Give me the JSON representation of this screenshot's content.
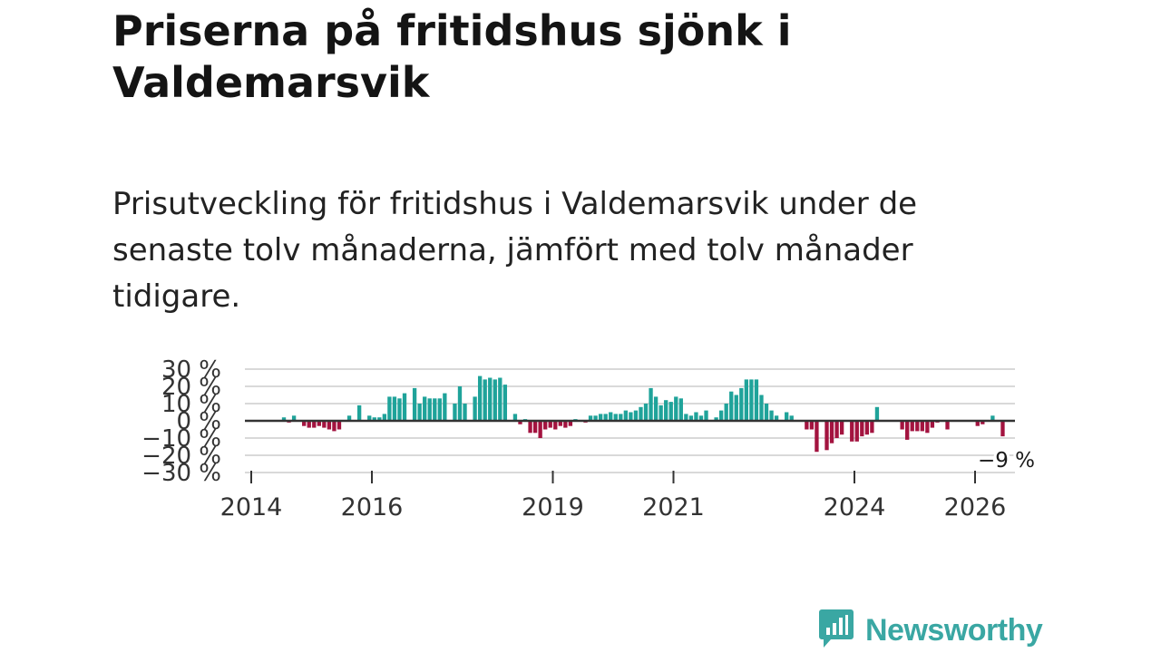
{
  "title": "Priserna på fritidshus sjönk i Valdemarsvik",
  "subtitle": "Prisutveckling för fritidshus i Valdemarsvik under de senaste tolv månaderna, jämfört med tolv månader tidigare.",
  "brand": {
    "name": "Newsworthy",
    "icon": "newsworthy-logo-icon"
  },
  "colors": {
    "positive": "#1fa39a",
    "negative": "#a3133f",
    "grid": "#d9d9d9",
    "zero_line": "#333333",
    "brand": "#3aa7a3"
  },
  "chart_data": {
    "type": "bar",
    "x_start": "2014-07",
    "x_step": "month",
    "x_ticks": [
      "2014",
      "2016",
      "2019",
      "2021",
      "2024",
      "2026"
    ],
    "y_ticks": [
      "30 %",
      "20 %",
      "10 %",
      "0 %",
      "−10 %",
      "−20 %",
      "−30 %"
    ],
    "ylim": [
      -30,
      30
    ],
    "grid": true,
    "annotation": "−9 %",
    "values": [
      2,
      -1,
      3,
      0,
      -3,
      -4,
      -4,
      -3,
      -4,
      -5,
      -6,
      -5,
      0,
      3,
      0,
      9,
      0,
      3,
      2,
      2,
      4,
      14,
      14,
      13,
      16,
      0,
      19,
      10,
      14,
      13,
      13,
      13,
      16,
      0,
      10,
      20,
      10,
      0,
      14,
      26,
      24,
      25,
      24,
      25,
      21,
      0,
      4,
      -2,
      1,
      -7,
      -7,
      -10,
      -5,
      -4,
      -5,
      -3,
      -4,
      -3,
      1,
      0,
      -1,
      3,
      3,
      4,
      4,
      5,
      4,
      4,
      6,
      5,
      6,
      8,
      10,
      19,
      14,
      9,
      12,
      11,
      14,
      13,
      4,
      3,
      5,
      3,
      6,
      0,
      2,
      6,
      10,
      17,
      15,
      19,
      24,
      24,
      24,
      15,
      10,
      6,
      3,
      0,
      5,
      3,
      0,
      0,
      -5,
      -5,
      -18,
      0,
      -17,
      -13,
      -10,
      -8,
      0,
      -12,
      -12,
      -9,
      -8,
      -7,
      8,
      0,
      0,
      0,
      0,
      -5,
      -11,
      -6,
      -6,
      -6,
      -7,
      -4,
      -1,
      0,
      -5,
      0,
      0,
      0,
      0,
      0,
      -3,
      -2,
      0,
      3,
      0,
      -9
    ]
  }
}
